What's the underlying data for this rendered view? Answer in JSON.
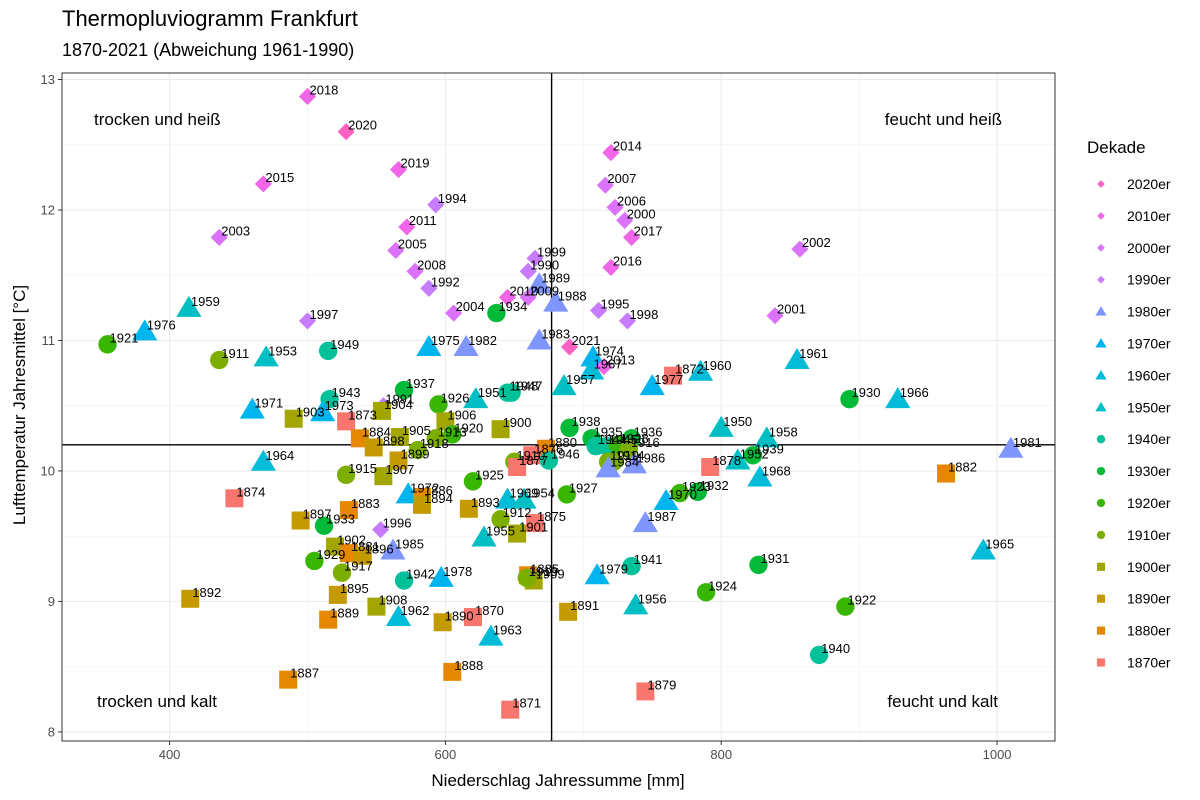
{
  "chart_data": {
    "type": "scatter",
    "title": "Thermopluviogramm Frankfurt",
    "subtitle": "1870-2021 (Abweichung 1961-1990)",
    "xlabel": "Niederschlag Jahressumme [mm]",
    "ylabel": "Lufttemperatur Jahresmittel [°C]",
    "xlim": [
      322,
      1042
    ],
    "ylim": [
      7.93,
      13.05
    ],
    "xticks": [
      400,
      600,
      800,
      1000
    ],
    "yticks": [
      8,
      9,
      10,
      11,
      12,
      13
    ],
    "grid": true,
    "reference_lines": {
      "x": 677,
      "y": 10.2
    },
    "quadrant_labels": {
      "top_left": "trocken und heiß",
      "top_right": "feucht und heiß",
      "bottom_left": "trocken und kalt",
      "bottom_right": "feucht und kalt"
    },
    "legend": {
      "title": "Dekade",
      "placement": "right",
      "entries": [
        {
          "name": "2020er",
          "color": "#FF61C3",
          "shape": "diamond"
        },
        {
          "name": "2010er",
          "color": "#F166E8",
          "shape": "diamond"
        },
        {
          "name": "2000er",
          "color": "#DB72FB",
          "shape": "diamond"
        },
        {
          "name": "1990er",
          "color": "#C77CFF",
          "shape": "diamond"
        },
        {
          "name": "1980er",
          "color": "#7F96FF",
          "shape": "triangle"
        },
        {
          "name": "1970er",
          "color": "#00B5EE",
          "shape": "triangle"
        },
        {
          "name": "1960er",
          "color": "#00BCD8",
          "shape": "triangle"
        },
        {
          "name": "1950er",
          "color": "#00BFC4",
          "shape": "triangle"
        },
        {
          "name": "1940er",
          "color": "#00C19A",
          "shape": "circle"
        },
        {
          "name": "1930er",
          "color": "#00BA38",
          "shape": "circle"
        },
        {
          "name": "1920er",
          "color": "#39B600",
          "shape": "circle"
        },
        {
          "name": "1910er",
          "color": "#7CAE00",
          "shape": "circle"
        },
        {
          "name": "1900er",
          "color": "#A3A500",
          "shape": "square"
        },
        {
          "name": "1890er",
          "color": "#C49A00",
          "shape": "square"
        },
        {
          "name": "1880er",
          "color": "#E58700",
          "shape": "square"
        },
        {
          "name": "1870er",
          "color": "#F8766D",
          "shape": "square"
        }
      ]
    },
    "points": [
      {
        "year": "2018",
        "x": 500,
        "y": 12.87,
        "decade": "2010er"
      },
      {
        "year": "2020",
        "x": 528,
        "y": 12.6,
        "decade": "2020er"
      },
      {
        "year": "2019",
        "x": 566,
        "y": 12.31,
        "decade": "2010er"
      },
      {
        "year": "2015",
        "x": 468,
        "y": 12.2,
        "decade": "2010er"
      },
      {
        "year": "2003",
        "x": 436,
        "y": 11.79,
        "decade": "2000er"
      },
      {
        "year": "1994",
        "x": 593,
        "y": 12.04,
        "decade": "1990er"
      },
      {
        "year": "2011",
        "x": 572,
        "y": 11.87,
        "decade": "2010er"
      },
      {
        "year": "2005",
        "x": 564,
        "y": 11.69,
        "decade": "2000er"
      },
      {
        "year": "2008",
        "x": 578,
        "y": 11.53,
        "decade": "2000er"
      },
      {
        "year": "1992",
        "x": 588,
        "y": 11.4,
        "decade": "1990er"
      },
      {
        "year": "2014",
        "x": 720,
        "y": 12.44,
        "decade": "2010er"
      },
      {
        "year": "2007",
        "x": 716,
        "y": 12.19,
        "decade": "2000er"
      },
      {
        "year": "2006",
        "x": 723,
        "y": 12.02,
        "decade": "2000er"
      },
      {
        "year": "2000",
        "x": 730,
        "y": 11.92,
        "decade": "2000er"
      },
      {
        "year": "2017",
        "x": 735,
        "y": 11.79,
        "decade": "2010er"
      },
      {
        "year": "2016",
        "x": 720,
        "y": 11.56,
        "decade": "2010er"
      },
      {
        "year": "2002",
        "x": 857,
        "y": 11.7,
        "decade": "2000er"
      },
      {
        "year": "1999",
        "x": 665,
        "y": 11.63,
        "decade": "1990er"
      },
      {
        "year": "1990",
        "x": 660,
        "y": 11.53,
        "decade": "1990er"
      },
      {
        "year": "1989",
        "x": 668,
        "y": 11.43,
        "decade": "1980er"
      },
      {
        "year": "2010",
        "x": 645,
        "y": 11.33,
        "decade": "2010er"
      },
      {
        "year": "2009",
        "x": 660,
        "y": 11.33,
        "decade": "2000er"
      },
      {
        "year": "1988",
        "x": 680,
        "y": 11.29,
        "decade": "1980er"
      },
      {
        "year": "1995",
        "x": 711,
        "y": 11.23,
        "decade": "1990er"
      },
      {
        "year": "2004",
        "x": 606,
        "y": 11.21,
        "decade": "2000er"
      },
      {
        "year": "1934",
        "x": 637,
        "y": 11.21,
        "decade": "1930er"
      },
      {
        "year": "1998",
        "x": 732,
        "y": 11.15,
        "decade": "1990er"
      },
      {
        "year": "2001",
        "x": 839,
        "y": 11.19,
        "decade": "2000er"
      },
      {
        "year": "1959",
        "x": 414,
        "y": 11.25,
        "decade": "1950er"
      },
      {
        "year": "1997",
        "x": 500,
        "y": 11.15,
        "decade": "1990er"
      },
      {
        "year": "1976",
        "x": 382,
        "y": 11.07,
        "decade": "1970er"
      },
      {
        "year": "1921",
        "x": 355,
        "y": 10.97,
        "decade": "1920er"
      },
      {
        "year": "1911",
        "x": 436,
        "y": 10.85,
        "decade": "1910er"
      },
      {
        "year": "1953",
        "x": 470,
        "y": 10.87,
        "decade": "1950er"
      },
      {
        "year": "1949",
        "x": 515,
        "y": 10.92,
        "decade": "1940er"
      },
      {
        "year": "1975",
        "x": 588,
        "y": 10.95,
        "decade": "1970er"
      },
      {
        "year": "1982",
        "x": 615,
        "y": 10.95,
        "decade": "1980er"
      },
      {
        "year": "1983",
        "x": 668,
        "y": 11.0,
        "decade": "1980er"
      },
      {
        "year": "2021",
        "x": 690,
        "y": 10.95,
        "decade": "2020er"
      },
      {
        "year": "1974",
        "x": 707,
        "y": 10.87,
        "decade": "1970er"
      },
      {
        "year": "1967",
        "x": 706,
        "y": 10.77,
        "decade": "1960er"
      },
      {
        "year": "2013",
        "x": 715,
        "y": 10.8,
        "decade": "2010er"
      },
      {
        "year": "1872",
        "x": 765,
        "y": 10.73,
        "decade": "1870er"
      },
      {
        "year": "1960",
        "x": 785,
        "y": 10.76,
        "decade": "1960er"
      },
      {
        "year": "1977",
        "x": 750,
        "y": 10.65,
        "decade": "1970er"
      },
      {
        "year": "1961",
        "x": 855,
        "y": 10.85,
        "decade": "1960er"
      },
      {
        "year": "1957",
        "x": 686,
        "y": 10.65,
        "decade": "1950er"
      },
      {
        "year": "1937",
        "x": 570,
        "y": 10.62,
        "decade": "1930er"
      },
      {
        "year": "1948",
        "x": 645,
        "y": 10.6,
        "decade": "1940er"
      },
      {
        "year": "1947",
        "x": 648,
        "y": 10.6,
        "decade": "1940er"
      },
      {
        "year": "1951",
        "x": 622,
        "y": 10.55,
        "decade": "1950er"
      },
      {
        "year": "1926",
        "x": 595,
        "y": 10.51,
        "decade": "1920er"
      },
      {
        "year": "1943",
        "x": 516,
        "y": 10.55,
        "decade": "1940er"
      },
      {
        "year": "1991",
        "x": 555,
        "y": 10.5,
        "decade": "1990er"
      },
      {
        "year": "1904",
        "x": 554,
        "y": 10.46,
        "decade": "1900er"
      },
      {
        "year": "1971",
        "x": 460,
        "y": 10.47,
        "decade": "1970er"
      },
      {
        "year": "1903",
        "x": 490,
        "y": 10.4,
        "decade": "1900er"
      },
      {
        "year": "1973",
        "x": 511,
        "y": 10.45,
        "decade": "1970er"
      },
      {
        "year": "1873",
        "x": 528,
        "y": 10.38,
        "decade": "1870er"
      },
      {
        "year": "1906",
        "x": 600,
        "y": 10.38,
        "decade": "1900er"
      },
      {
        "year": "1920",
        "x": 605,
        "y": 10.28,
        "decade": "1920er"
      },
      {
        "year": "1900",
        "x": 640,
        "y": 10.32,
        "decade": "1900er"
      },
      {
        "year": "1884",
        "x": 538,
        "y": 10.25,
        "decade": "1880er"
      },
      {
        "year": "1905",
        "x": 567,
        "y": 10.26,
        "decade": "1900er"
      },
      {
        "year": "1913",
        "x": 593,
        "y": 10.25,
        "decade": "1910er"
      },
      {
        "year": "1898",
        "x": 548,
        "y": 10.18,
        "decade": "1890er"
      },
      {
        "year": "1918",
        "x": 580,
        "y": 10.16,
        "decade": "1910er"
      },
      {
        "year": "1899",
        "x": 566,
        "y": 10.08,
        "decade": "1890er"
      },
      {
        "year": "1938",
        "x": 690,
        "y": 10.33,
        "decade": "1930er"
      },
      {
        "year": "1935",
        "x": 706,
        "y": 10.25,
        "decade": "1930er"
      },
      {
        "year": "1880",
        "x": 673,
        "y": 10.17,
        "decade": "1880er"
      },
      {
        "year": "1944",
        "x": 709,
        "y": 10.19,
        "decade": "1940er"
      },
      {
        "year": "1945",
        "x": 717,
        "y": 10.19,
        "decade": "1940er"
      },
      {
        "year": "1928",
        "x": 725,
        "y": 10.2,
        "decade": "1920er"
      },
      {
        "year": "1936",
        "x": 735,
        "y": 10.25,
        "decade": "1930er"
      },
      {
        "year": "1916",
        "x": 733,
        "y": 10.17,
        "decade": "1910er"
      },
      {
        "year": "1910",
        "x": 650,
        "y": 10.07,
        "decade": "1910er"
      },
      {
        "year": "1876",
        "x": 663,
        "y": 10.12,
        "decade": "1870er"
      },
      {
        "year": "1877",
        "x": 652,
        "y": 10.03,
        "decade": "1870er"
      },
      {
        "year": "1946",
        "x": 675,
        "y": 10.08,
        "decade": "1940er"
      },
      {
        "year": "1919",
        "x": 718,
        "y": 10.07,
        "decade": "1910er"
      },
      {
        "year": "1914",
        "x": 722,
        "y": 10.07,
        "decade": "1910er"
      },
      {
        "year": "1984",
        "x": 718,
        "y": 10.02,
        "decade": "1980er"
      },
      {
        "year": "1986",
        "x": 737,
        "y": 10.05,
        "decade": "1980er"
      },
      {
        "year": "1950",
        "x": 800,
        "y": 10.33,
        "decade": "1950er"
      },
      {
        "year": "1958",
        "x": 833,
        "y": 10.25,
        "decade": "1950er"
      },
      {
        "year": "1939",
        "x": 823,
        "y": 10.12,
        "decade": "1930er"
      },
      {
        "year": "1952",
        "x": 812,
        "y": 10.08,
        "decade": "1950er"
      },
      {
        "year": "1878",
        "x": 792,
        "y": 10.03,
        "decade": "1870er"
      },
      {
        "year": "1968",
        "x": 828,
        "y": 9.95,
        "decade": "1960er"
      },
      {
        "year": "1930",
        "x": 893,
        "y": 10.55,
        "decade": "1930er"
      },
      {
        "year": "1966",
        "x": 928,
        "y": 10.55,
        "decade": "1960er"
      },
      {
        "year": "1981",
        "x": 1010,
        "y": 10.17,
        "decade": "1980er"
      },
      {
        "year": "1882",
        "x": 963,
        "y": 9.98,
        "decade": "1880er"
      },
      {
        "year": "1964",
        "x": 468,
        "y": 10.07,
        "decade": "1960er"
      },
      {
        "year": "1874",
        "x": 447,
        "y": 9.79,
        "decade": "1870er"
      },
      {
        "year": "1915",
        "x": 528,
        "y": 9.97,
        "decade": "1910er"
      },
      {
        "year": "1907",
        "x": 555,
        "y": 9.96,
        "decade": "1900er"
      },
      {
        "year": "1925",
        "x": 620,
        "y": 9.92,
        "decade": "1920er"
      },
      {
        "year": "1972",
        "x": 573,
        "y": 9.82,
        "decade": "1970er"
      },
      {
        "year": "1886",
        "x": 583,
        "y": 9.8,
        "decade": "1880er"
      },
      {
        "year": "1894",
        "x": 583,
        "y": 9.74,
        "decade": "1890er"
      },
      {
        "year": "1893",
        "x": 617,
        "y": 9.71,
        "decade": "1890er"
      },
      {
        "year": "1969",
        "x": 645,
        "y": 9.78,
        "decade": "1960er"
      },
      {
        "year": "1954",
        "x": 657,
        "y": 9.78,
        "decade": "1950er"
      },
      {
        "year": "1912",
        "x": 640,
        "y": 9.63,
        "decade": "1910er"
      },
      {
        "year": "1875",
        "x": 665,
        "y": 9.6,
        "decade": "1870er"
      },
      {
        "year": "1901",
        "x": 652,
        "y": 9.52,
        "decade": "1900er"
      },
      {
        "year": "1927",
        "x": 688,
        "y": 9.82,
        "decade": "1920er"
      },
      {
        "year": "1923",
        "x": 770,
        "y": 9.83,
        "decade": "1920er"
      },
      {
        "year": "1932",
        "x": 783,
        "y": 9.84,
        "decade": "1930er"
      },
      {
        "year": "1970",
        "x": 760,
        "y": 9.77,
        "decade": "1970er"
      },
      {
        "year": "1897",
        "x": 495,
        "y": 9.62,
        "decade": "1890er"
      },
      {
        "year": "1883",
        "x": 530,
        "y": 9.7,
        "decade": "1880er"
      },
      {
        "year": "1933",
        "x": 512,
        "y": 9.58,
        "decade": "1930er"
      },
      {
        "year": "1996",
        "x": 553,
        "y": 9.55,
        "decade": "1990er"
      },
      {
        "year": "1955",
        "x": 628,
        "y": 9.49,
        "decade": "1950er"
      },
      {
        "year": "1987",
        "x": 745,
        "y": 9.6,
        "decade": "1980er"
      },
      {
        "year": "1902",
        "x": 520,
        "y": 9.42,
        "decade": "1900er"
      },
      {
        "year": "1881",
        "x": 530,
        "y": 9.37,
        "decade": "1880er"
      },
      {
        "year": "1896",
        "x": 540,
        "y": 9.35,
        "decade": "1890er"
      },
      {
        "year": "1985",
        "x": 562,
        "y": 9.39,
        "decade": "1980er"
      },
      {
        "year": "1929",
        "x": 505,
        "y": 9.31,
        "decade": "1920er"
      },
      {
        "year": "1917",
        "x": 525,
        "y": 9.22,
        "decade": "1910er"
      },
      {
        "year": "1942",
        "x": 570,
        "y": 9.16,
        "decade": "1940er"
      },
      {
        "year": "1978",
        "x": 597,
        "y": 9.18,
        "decade": "1970er"
      },
      {
        "year": "1885",
        "x": 660,
        "y": 9.2,
        "decade": "1880er"
      },
      {
        "year": "1909",
        "x": 664,
        "y": 9.16,
        "decade": "1900er"
      },
      {
        "year": "1919b",
        "x": 659,
        "y": 9.18,
        "decade": "1910er"
      },
      {
        "year": "1941",
        "x": 735,
        "y": 9.27,
        "decade": "1940er"
      },
      {
        "year": "1979",
        "x": 710,
        "y": 9.2,
        "decade": "1970er"
      },
      {
        "year": "1931",
        "x": 827,
        "y": 9.28,
        "decade": "1930er"
      },
      {
        "year": "1965",
        "x": 990,
        "y": 9.39,
        "decade": "1960er"
      },
      {
        "year": "1892",
        "x": 415,
        "y": 9.02,
        "decade": "1890er"
      },
      {
        "year": "1895",
        "x": 522,
        "y": 9.05,
        "decade": "1890er"
      },
      {
        "year": "1908",
        "x": 550,
        "y": 8.96,
        "decade": "1900er"
      },
      {
        "year": "1889",
        "x": 515,
        "y": 8.86,
        "decade": "1880er"
      },
      {
        "year": "1962",
        "x": 566,
        "y": 8.88,
        "decade": "1960er"
      },
      {
        "year": "1890",
        "x": 598,
        "y": 8.84,
        "decade": "1890er"
      },
      {
        "year": "1870",
        "x": 620,
        "y": 8.88,
        "decade": "1870er"
      },
      {
        "year": "1891",
        "x": 689,
        "y": 8.92,
        "decade": "1890er"
      },
      {
        "year": "1956",
        "x": 738,
        "y": 8.97,
        "decade": "1950er"
      },
      {
        "year": "1924",
        "x": 789,
        "y": 9.07,
        "decade": "1920er"
      },
      {
        "year": "1922",
        "x": 890,
        "y": 8.96,
        "decade": "1920er"
      },
      {
        "year": "1963",
        "x": 633,
        "y": 8.73,
        "decade": "1960er"
      },
      {
        "year": "1940",
        "x": 871,
        "y": 8.59,
        "decade": "1940er"
      },
      {
        "year": "1888",
        "x": 605,
        "y": 8.46,
        "decade": "1880er"
      },
      {
        "year": "1887",
        "x": 486,
        "y": 8.4,
        "decade": "1880er"
      },
      {
        "year": "1879",
        "x": 745,
        "y": 8.31,
        "decade": "1870er"
      },
      {
        "year": "1871",
        "x": 647,
        "y": 8.17,
        "decade": "1870er"
      }
    ]
  }
}
